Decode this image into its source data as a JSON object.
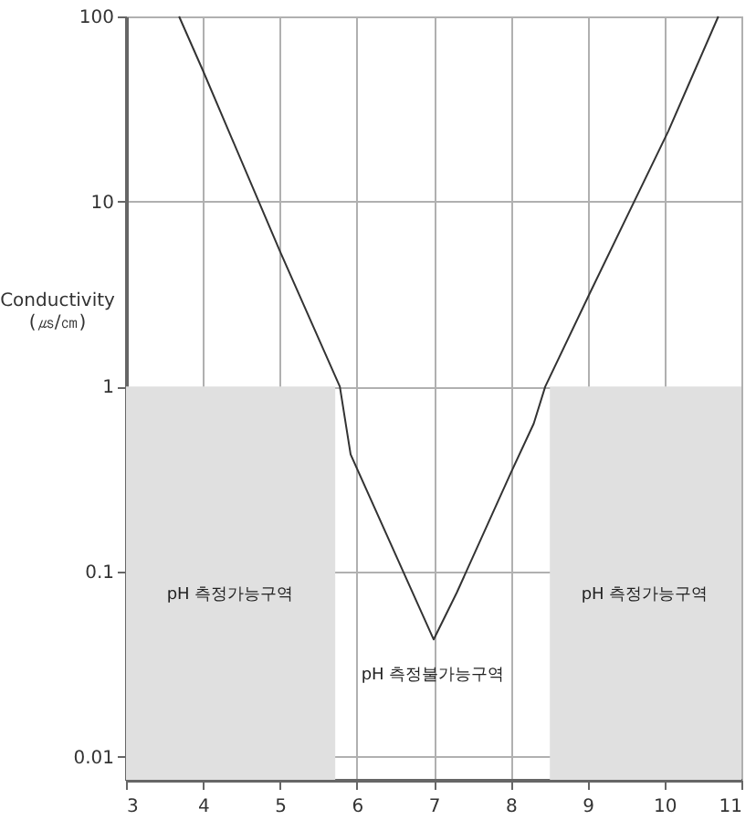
{
  "chart_data": {
    "type": "line",
    "ylabel": "Conductivity (㎲/㎝)",
    "log": "y",
    "grid": true,
    "xlim": [
      3,
      11
    ],
    "ylim": [
      0.0075,
      100
    ],
    "xticks": [
      3,
      4,
      5,
      6,
      7,
      8,
      9,
      10,
      11
    ],
    "yticks": [
      0.01,
      0.1,
      1,
      10,
      100
    ],
    "series": [
      {
        "type": "area",
        "color": "#e0e0e0",
        "x": [
          3,
          5.72
        ],
        "values": [
          1,
          1
        ]
      },
      {
        "type": "area",
        "color": "#e0e0e0",
        "x": [
          8.51,
          11
        ],
        "values": [
          1,
          1
        ]
      },
      {
        "color": "#333333",
        "x": [
          3.69,
          4,
          5,
          5.78,
          5.92,
          6.82,
          7,
          7.3,
          8,
          8.3,
          8.45,
          9.03,
          10.05,
          10.7
        ],
        "values": [
          100,
          51,
          5.4,
          1,
          0.43,
          0.063,
          0.043,
          0.077,
          0.34,
          0.63,
          1,
          3.2,
          24,
          100
        ]
      }
    ],
    "annotations": [
      "pH 측정가능구역",
      "pH 측정불가능구역",
      "pH 측정가능구역"
    ]
  }
}
